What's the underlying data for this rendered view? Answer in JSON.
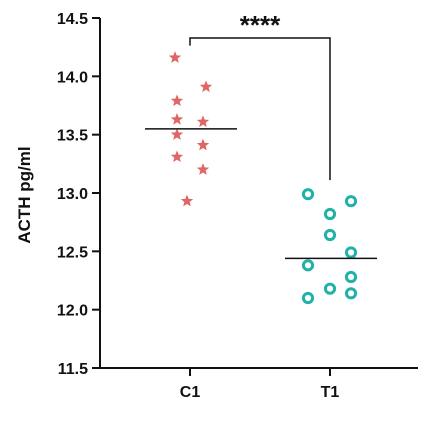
{
  "chart_data": {
    "type": "scatter",
    "title": "",
    "xlabel": "",
    "ylabel": "ACTH pg/ml",
    "ylim": [
      11.5,
      14.5
    ],
    "yticks": [
      "11.5",
      "12.0",
      "12.5",
      "13.0",
      "13.5",
      "14.0",
      "14.5"
    ],
    "categories": [
      "C1",
      "T1"
    ],
    "grid": false,
    "series": [
      {
        "category": "C1",
        "marker": "star",
        "color": "#e06666",
        "points": [
          {
            "x": "C1",
            "y": 14.16
          },
          {
            "x": "C1",
            "y": 13.91
          },
          {
            "x": "C1",
            "y": 13.79
          },
          {
            "x": "C1",
            "y": 13.63
          },
          {
            "x": "C1",
            "y": 13.61
          },
          {
            "x": "C1",
            "y": 13.5
          },
          {
            "x": "C1",
            "y": 13.41
          },
          {
            "x": "C1",
            "y": 13.31
          },
          {
            "x": "C1",
            "y": 13.2
          },
          {
            "x": "C1",
            "y": 12.93
          }
        ],
        "median": 13.55
      },
      {
        "category": "T1",
        "marker": "open-circle",
        "color": "#20b2aa",
        "points": [
          {
            "x": "T1",
            "y": 12.99
          },
          {
            "x": "T1",
            "y": 12.93
          },
          {
            "x": "T1",
            "y": 12.82
          },
          {
            "x": "T1",
            "y": 12.64
          },
          {
            "x": "T1",
            "y": 12.49
          },
          {
            "x": "T1",
            "y": 12.38
          },
          {
            "x": "T1",
            "y": 12.28
          },
          {
            "x": "T1",
            "y": 12.18
          },
          {
            "x": "T1",
            "y": 12.14
          },
          {
            "x": "T1",
            "y": 12.1
          }
        ],
        "median": 12.44
      }
    ],
    "significance": {
      "from": "C1",
      "to": "T1",
      "label": "****"
    }
  }
}
